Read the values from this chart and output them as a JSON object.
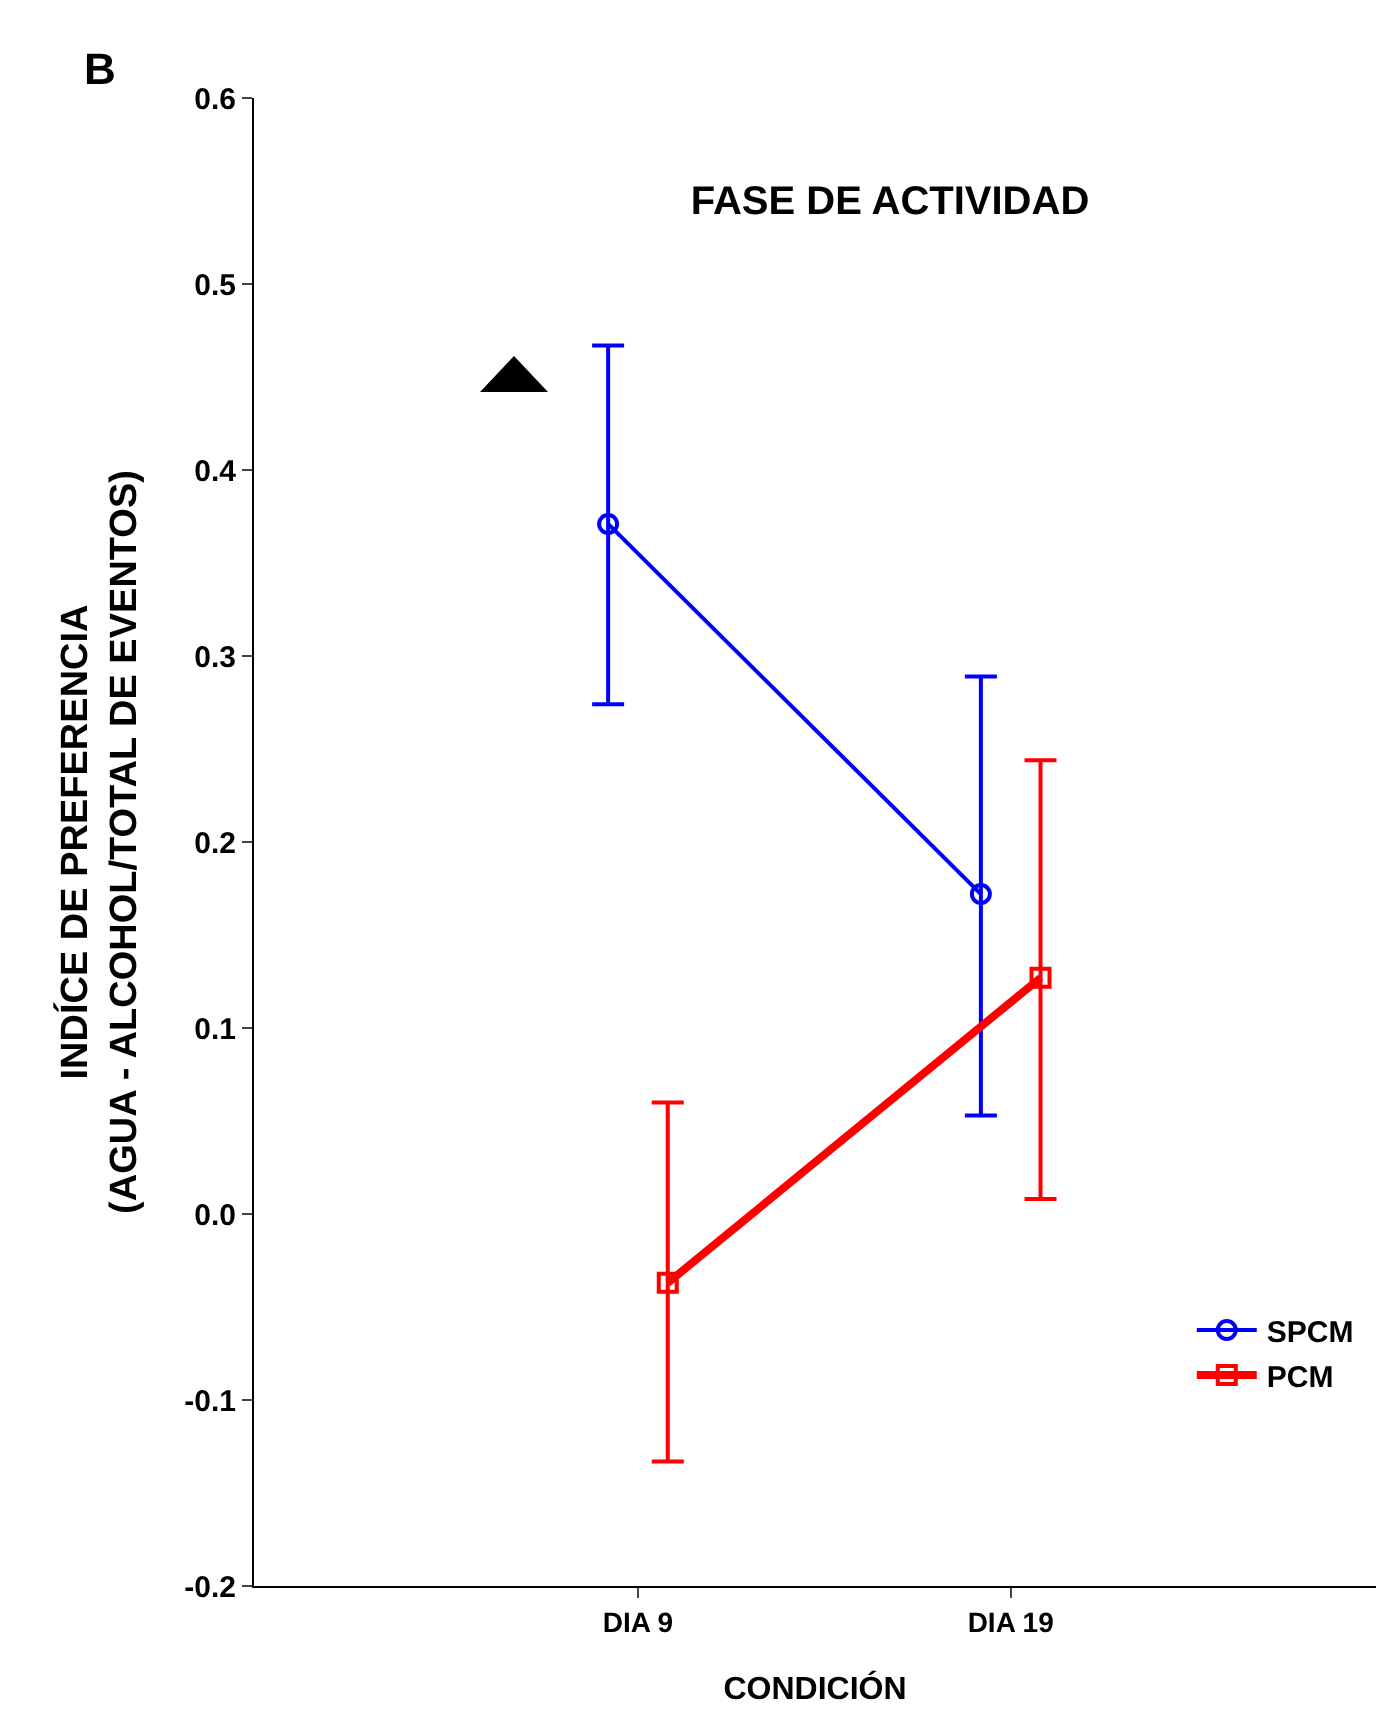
{
  "chart_data": {
    "type": "line",
    "title": "FASE DE ACTIVIDAD",
    "xlabel": "CONDICIÓN",
    "ylabel": "INDÍCE DE PREFERENCIA\n(AGUA - ALCOHOL/TOTAL DE EVENTOS)",
    "annotations": [
      "B"
    ],
    "categories": [
      "DIA 9",
      "DIA 19"
    ],
    "series": [
      {
        "name": "SPCM",
        "color": "#0000ff",
        "marker": "circle",
        "values": [
          0.371,
          0.172
        ],
        "errors": [
          [
            0.274,
            0.467
          ],
          [
            0.053,
            0.289
          ]
        ]
      },
      {
        "name": "PCM",
        "color": "#ff0000",
        "marker": "square",
        "values": [
          -0.037,
          0.127
        ],
        "errors": [
          [
            -0.133,
            0.06
          ],
          [
            0.008,
            0.244
          ]
        ]
      }
    ],
    "ylim": [
      -0.2,
      0.6
    ],
    "yticks": [
      -0.2,
      -0.1,
      {
        "value": 0,
        "label": "0.0"
      },
      0.1,
      0.2,
      0.3,
      0.4,
      0.5,
      0.6
    ],
    "grid": false,
    "legend": "bottom right",
    "line_style": "solid"
  }
}
